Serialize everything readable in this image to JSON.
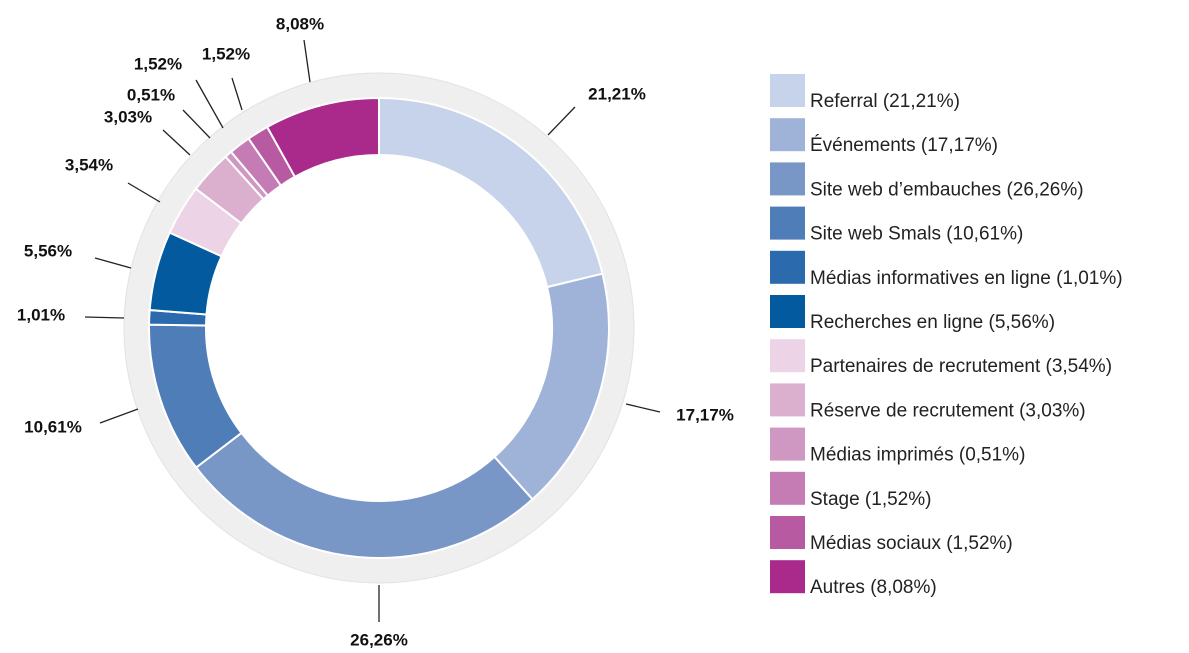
{
  "chart_data": {
    "type": "donut",
    "categories": [
      "Referral (21,21%)",
      "Événements (17,17%)",
      "Site web d’embauches (26,26%)",
      "Site web Smals (10,61%)",
      "Médias informatives en ligne (1,01%)",
      "Recherches en ligne (5,56%)",
      "Partenaires de recrutement (3,54%)",
      "Réserve de recrutement (3,03%)",
      "Médias imprimés (0,51%)",
      "Stage (1,52%)",
      "Médias sociaux (1,52%)",
      "Autres (8,08%)"
    ],
    "values": [
      21.21,
      17.17,
      26.26,
      10.61,
      1.01,
      5.56,
      3.54,
      3.03,
      0.51,
      1.52,
      1.52,
      8.08
    ],
    "value_labels": [
      "21,21%",
      "17,17%",
      "26,26%",
      "10,61%",
      "1,01%",
      "5,56%",
      "3,54%",
      "3,03%",
      "0,51%",
      "1,52%",
      "1,52%",
      "8,08%"
    ],
    "colors": [
      "#c6d3ea",
      "#9fb3d8",
      "#7896c6",
      "#4f7db7",
      "#2a6aad",
      "#035a9e",
      "#ecd3e6",
      "#dbb0cf",
      "#cf98c3",
      "#c57bb4",
      "#b85aa1",
      "#a92a8a"
    ]
  }
}
